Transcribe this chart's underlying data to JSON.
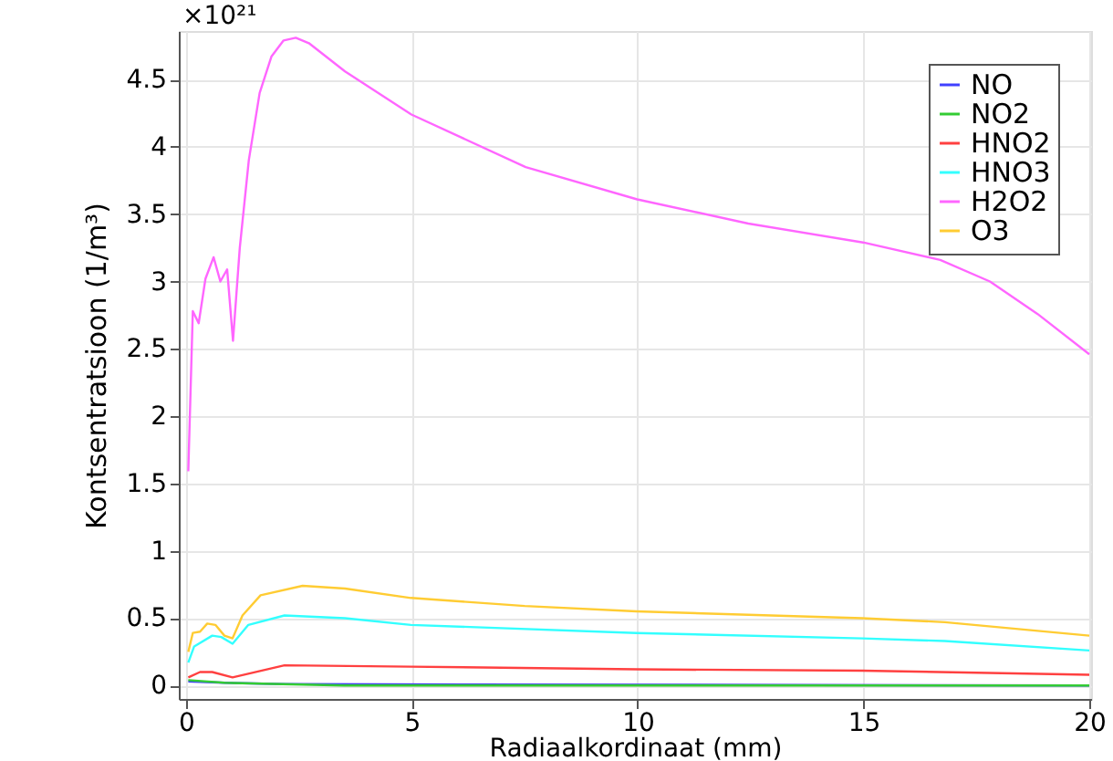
{
  "chart_data": {
    "type": "line",
    "xlabel": "Radiaalkordinaat (mm)",
    "ylabel": "Kontsentratsioon (1/m³)",
    "annotations": [
      "×10²¹"
    ],
    "xlim": [
      -0.16,
      20.04
    ],
    "ylim": [
      -0.1,
      4.86
    ],
    "xticks": [
      0,
      5,
      10,
      15,
      20
    ],
    "yticks": [
      0,
      0.5,
      1,
      1.5,
      2,
      2.5,
      3,
      3.5,
      4,
      4.5
    ],
    "grid": true,
    "legend": "top right",
    "line_style": "solid",
    "marker": "none",
    "series": [
      {
        "name": "NO",
        "color": "#4040ff",
        "x": [
          0.05,
          0.85,
          2.2,
          20
        ],
        "values": [
          0.03,
          0.02,
          0.01,
          0
        ]
      },
      {
        "name": "NO2",
        "color": "#33cc33",
        "x": [
          0.05,
          0.85,
          3.5,
          20
        ],
        "values": [
          0.04,
          0.02,
          0,
          0
        ]
      },
      {
        "name": "HNO2",
        "color": "#ff4040",
        "x": [
          0.05,
          0.31,
          0.58,
          1.03,
          2.18,
          4.98,
          9.97,
          14.97,
          20
        ],
        "values": [
          0.06,
          0.1,
          0.1,
          0.06,
          0.15,
          0.14,
          0.12,
          0.11,
          0.08
        ]
      },
      {
        "name": "HNO3",
        "color": "#33ffff",
        "x": [
          0.05,
          0.18,
          0.58,
          0.78,
          1.03,
          1.38,
          2.18,
          3.52,
          4.98,
          9.97,
          14.97,
          16.8,
          20
        ],
        "values": [
          0.17,
          0.29,
          0.37,
          0.36,
          0.31,
          0.45,
          0.52,
          0.5,
          0.45,
          0.39,
          0.35,
          0.33,
          0.26
        ]
      },
      {
        "name": "H2O2",
        "color": "#ff66ff",
        "x": [
          0.05,
          0.15,
          0.28,
          0.43,
          0.61,
          0.76,
          0.91,
          1.04,
          1.19,
          1.39,
          1.63,
          1.89,
          2.16,
          2.43,
          2.72,
          3.52,
          4.99,
          7.52,
          9.99,
          12.45,
          14.99,
          16.7,
          17.8,
          18.85,
          20
        ],
        "values": [
          1.59,
          2.78,
          2.69,
          3.02,
          3.18,
          3.0,
          3.09,
          2.56,
          3.25,
          3.9,
          4.4,
          4.67,
          4.79,
          4.81,
          4.77,
          4.56,
          4.24,
          3.85,
          3.61,
          3.43,
          3.29,
          3.16,
          3.0,
          2.76,
          2.46
        ]
      },
      {
        "name": "O3",
        "color": "#ffcc33",
        "x": [
          0.05,
          0.15,
          0.31,
          0.47,
          0.65,
          0.85,
          1.03,
          1.25,
          1.65,
          2.58,
          3.52,
          4.98,
          7.5,
          9.97,
          14.97,
          16.8,
          20
        ],
        "values": [
          0.25,
          0.39,
          0.4,
          0.46,
          0.45,
          0.37,
          0.35,
          0.52,
          0.67,
          0.74,
          0.72,
          0.65,
          0.59,
          0.55,
          0.5,
          0.47,
          0.37
        ]
      }
    ]
  }
}
